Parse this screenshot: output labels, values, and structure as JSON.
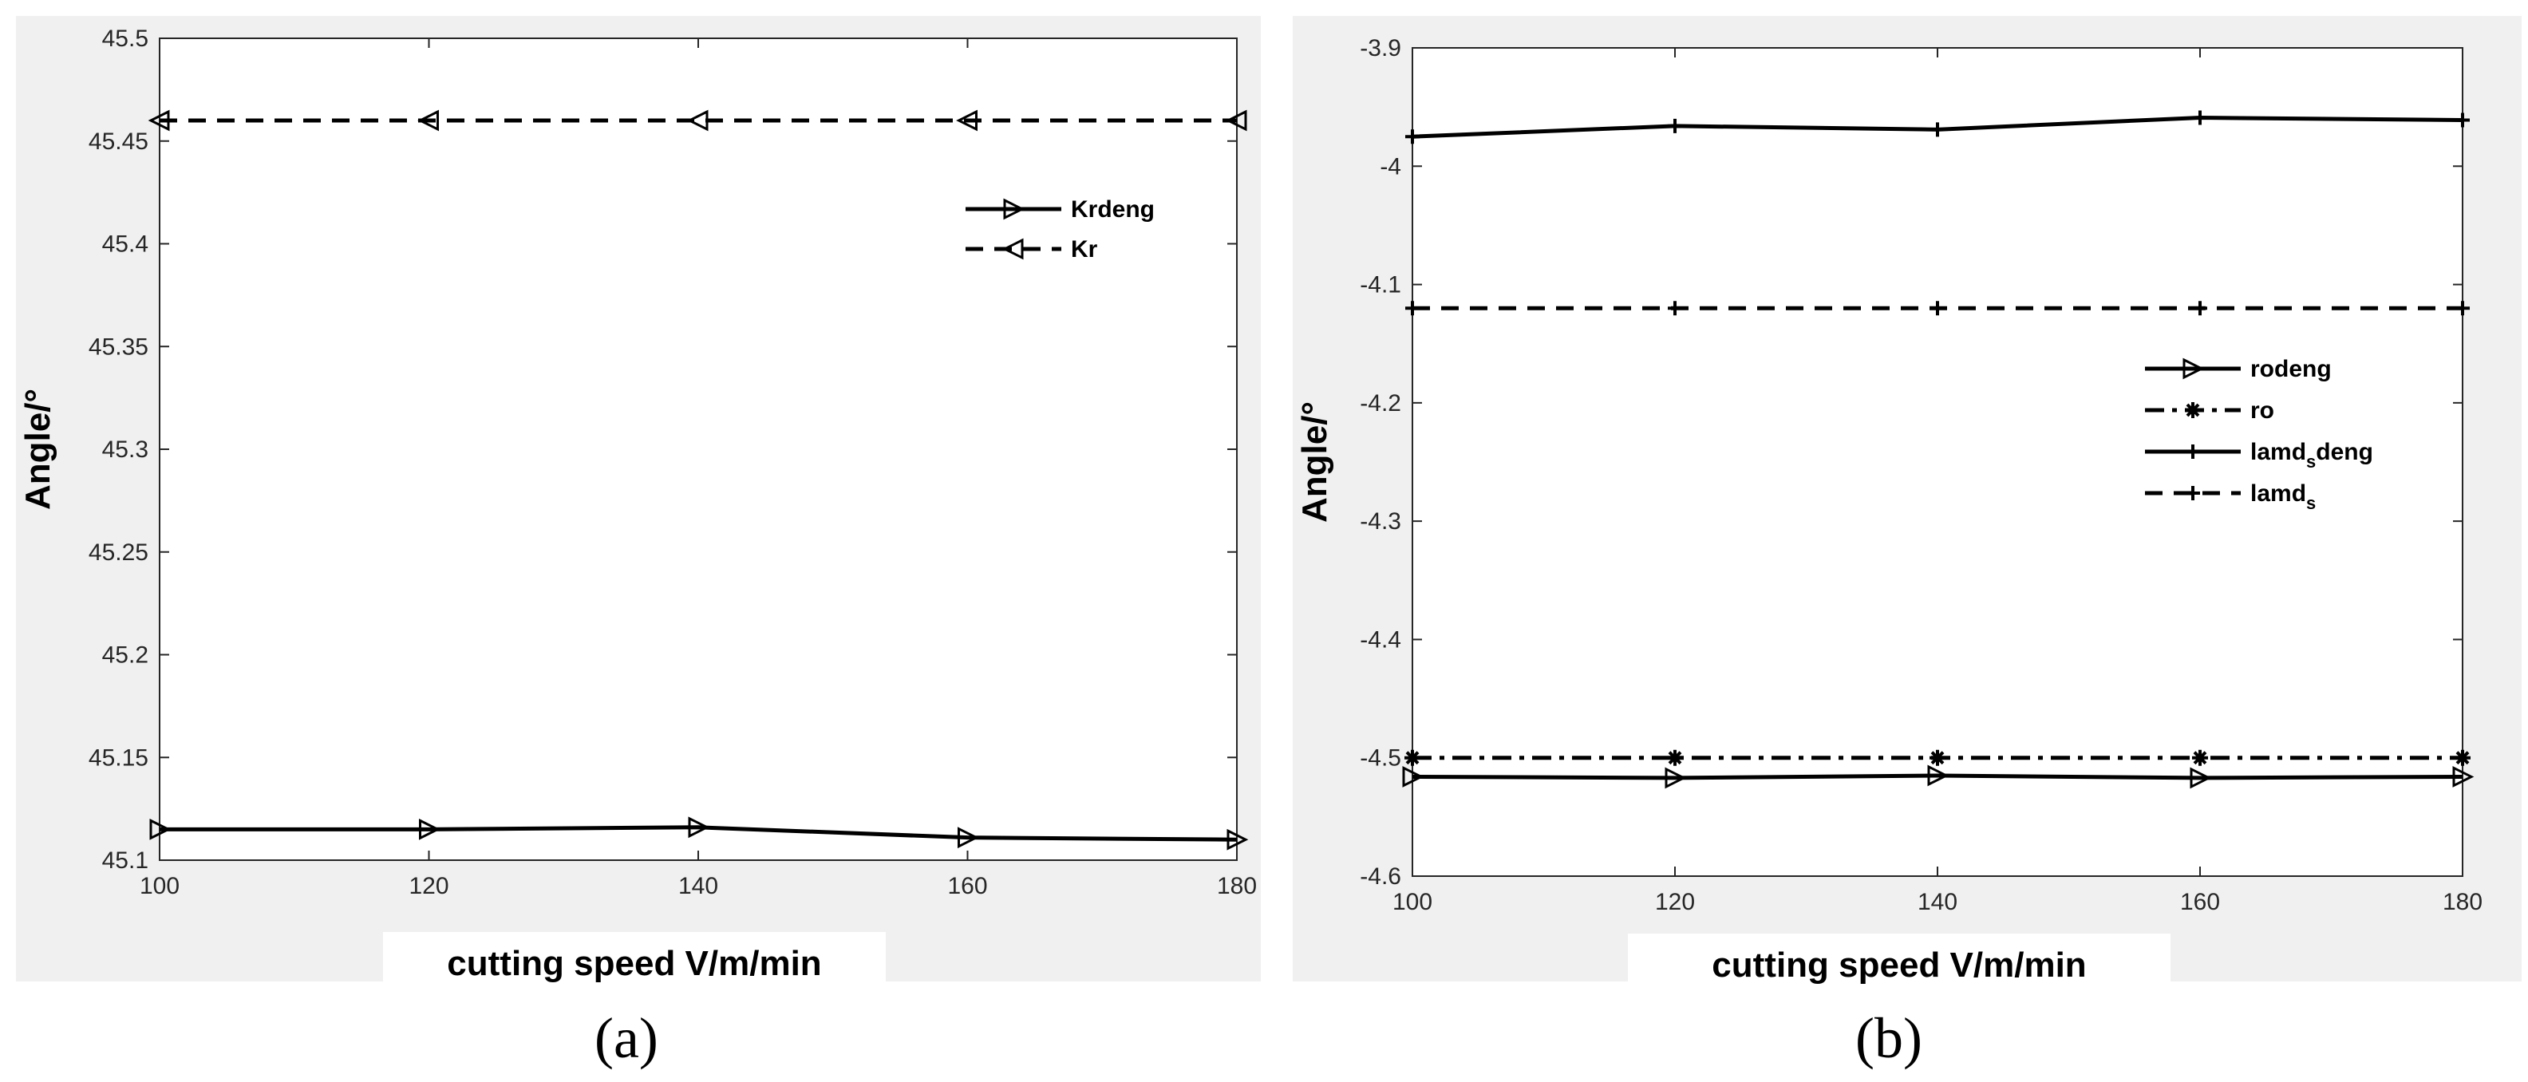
{
  "chart_data": [
    {
      "type": "line",
      "panel_caption": "(a)",
      "xlabel": "cutting speed  V/m/min",
      "ylabel": "Angle/°",
      "xlim": [
        100,
        180
      ],
      "ylim": [
        45.1,
        45.5
      ],
      "xticks": [
        100,
        120,
        140,
        160,
        180
      ],
      "yticks": [
        45.1,
        45.15,
        45.2,
        45.25,
        45.3,
        45.35,
        45.4,
        45.45,
        45.5
      ],
      "ytick_labels": [
        "45.1",
        "45.15",
        "45.2",
        "45.25",
        "45.3",
        "45.35",
        "45.4",
        "45.45",
        "45.5"
      ],
      "x": [
        100,
        120,
        140,
        160,
        180
      ],
      "legend_position": "top-right",
      "series": [
        {
          "name": "Krdeng",
          "values": [
            45.115,
            45.115,
            45.116,
            45.111,
            45.11
          ],
          "line": "solid",
          "marker": "triangle-right"
        },
        {
          "name": "Kr",
          "values": [
            45.46,
            45.46,
            45.46,
            45.46,
            45.46
          ],
          "line": "dashed",
          "marker": "triangle-left"
        }
      ]
    },
    {
      "type": "line",
      "panel_caption": "(b)",
      "xlabel": "cutting speed  V/m/min",
      "ylabel": "Angle/°",
      "xlim": [
        100,
        180
      ],
      "ylim": [
        -4.6,
        -3.9
      ],
      "xticks": [
        100,
        120,
        140,
        160,
        180
      ],
      "yticks": [
        -4.6,
        -4.5,
        -4.4,
        -4.3,
        -4.2,
        -4.1,
        -4.0,
        -3.9
      ],
      "ytick_labels": [
        "-4.6",
        "-4.5",
        "-4.4",
        "-4.3",
        "-4.2",
        "-4.1",
        "-4",
        "-3.9"
      ],
      "x": [
        100,
        120,
        140,
        160,
        180
      ],
      "legend_position": "right",
      "series": [
        {
          "name": "rodeng",
          "values": [
            -4.516,
            -4.517,
            -4.515,
            -4.517,
            -4.516
          ],
          "line": "solid",
          "marker": "triangle-right"
        },
        {
          "name": "ro",
          "values": [
            -4.5,
            -4.5,
            -4.5,
            -4.5,
            -4.5
          ],
          "line": "dashdot",
          "marker": "star"
        },
        {
          "name": "lamd_s deng",
          "label_main": "lamd",
          "label_sub": "s",
          "label_tail": "deng",
          "values": [
            -3.975,
            -3.966,
            -3.969,
            -3.959,
            -3.961
          ],
          "line": "solid",
          "marker": "plus"
        },
        {
          "name": "lamd_s",
          "label_main": "lamd",
          "label_sub": "s",
          "label_tail": "",
          "values": [
            -4.12,
            -4.12,
            -4.12,
            -4.12,
            -4.12
          ],
          "line": "dashed",
          "marker": "plus"
        }
      ]
    }
  ]
}
